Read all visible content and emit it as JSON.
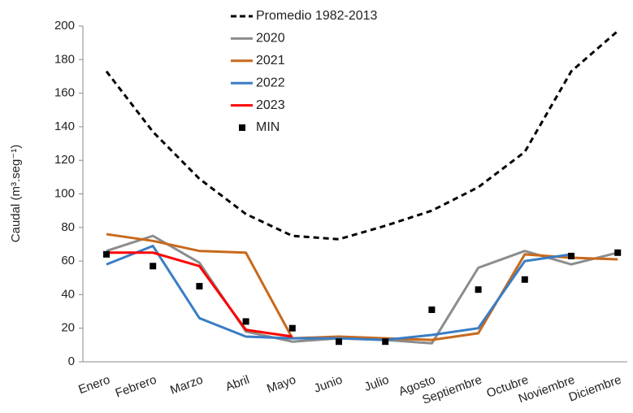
{
  "chart_data": {
    "type": "line",
    "y_label": "Caudal  (m³.seg⁻¹)",
    "categories": [
      "Enero",
      "Febrero",
      "Marzo",
      "Abril",
      "Mayo",
      "Junio",
      "Julio",
      "Agosto",
      "Septiembre",
      "Octubre",
      "Noviembre",
      "Diciembre"
    ],
    "series": [
      {
        "name": "Promedio 1982-2013",
        "color": "#000000",
        "style": "dashed",
        "values": [
          173,
          137,
          109,
          88,
          75,
          73,
          81,
          90,
          104,
          125,
          173,
          197
        ]
      },
      {
        "name": "2020",
        "color": "#8c8c8c",
        "style": "solid",
        "values": [
          66,
          75,
          59,
          18,
          12,
          14,
          13,
          11,
          56,
          66,
          58,
          65
        ]
      },
      {
        "name": "2021",
        "color": "#c8691c",
        "style": "solid",
        "values": [
          76,
          72,
          66,
          65,
          14,
          15,
          14,
          13,
          17,
          64,
          62,
          61
        ]
      },
      {
        "name": "2022",
        "color": "#3a7dc4",
        "style": "solid",
        "values": [
          58,
          69,
          26,
          15,
          14,
          14,
          13,
          16,
          20,
          60,
          64,
          null
        ]
      },
      {
        "name": "2023",
        "color": "#ff0000",
        "style": "solid",
        "values": [
          65,
          65,
          57,
          19,
          15,
          null,
          null,
          null,
          null,
          null,
          null,
          null
        ]
      },
      {
        "name": "MIN",
        "color": "#000000",
        "style": "marker",
        "values": [
          64,
          57,
          45,
          24,
          20,
          12,
          12,
          31,
          43,
          49,
          63,
          65
        ]
      }
    ],
    "ylim": [
      0,
      200
    ],
    "yticks": [
      0,
      20,
      40,
      60,
      80,
      100,
      120,
      140,
      160,
      180,
      200
    ],
    "legend": "top"
  }
}
